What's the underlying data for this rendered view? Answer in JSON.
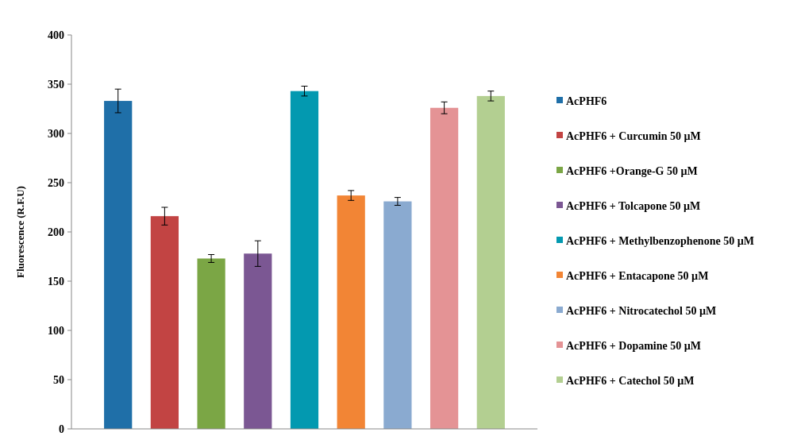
{
  "chart_data": {
    "type": "bar",
    "ylabel": "Fluorescence (R.F.U)",
    "categories": [
      null
    ],
    "ylim": [
      0,
      400
    ],
    "yticks": [
      0,
      50,
      100,
      150,
      200,
      250,
      300,
      350,
      400
    ],
    "legend": "right",
    "grid": false,
    "series": [
      {
        "name": "AcPHF6",
        "color": "#1f6fa8",
        "values": [
          333
        ],
        "errors": [
          12
        ]
      },
      {
        "name": "AcPHF6 + Curcumin 50 µM",
        "color": "#c24443",
        "values": [
          216
        ],
        "errors": [
          9
        ]
      },
      {
        "name": "AcPHF6 +Orange-G 50 µM",
        "color": "#7ba645",
        "values": [
          173
        ],
        "errors": [
          4
        ]
      },
      {
        "name": "AcPHF6 + Tolcapone 50 µM",
        "color": "#7b5793",
        "values": [
          178
        ],
        "errors": [
          13
        ]
      },
      {
        "name": "AcPHF6 + Methylbenzophenone 50 µM",
        "color": "#0399b0",
        "values": [
          343
        ],
        "errors": [
          5
        ]
      },
      {
        "name": "AcPHF6 + Entacapone 50 µM",
        "color": "#f28535",
        "values": [
          237
        ],
        "errors": [
          5
        ]
      },
      {
        "name": "AcPHF6 + Nitrocatechol 50 µM",
        "color": "#8aaad0",
        "values": [
          231
        ],
        "errors": [
          4
        ]
      },
      {
        "name": "AcPHF6 + Dopamine 50 µM",
        "color": "#e49395",
        "values": [
          326
        ],
        "errors": [
          6
        ]
      },
      {
        "name": "AcPHF6 + Catechol 50 µM",
        "color": "#b3cf91",
        "values": [
          338
        ],
        "errors": [
          5
        ]
      }
    ]
  }
}
